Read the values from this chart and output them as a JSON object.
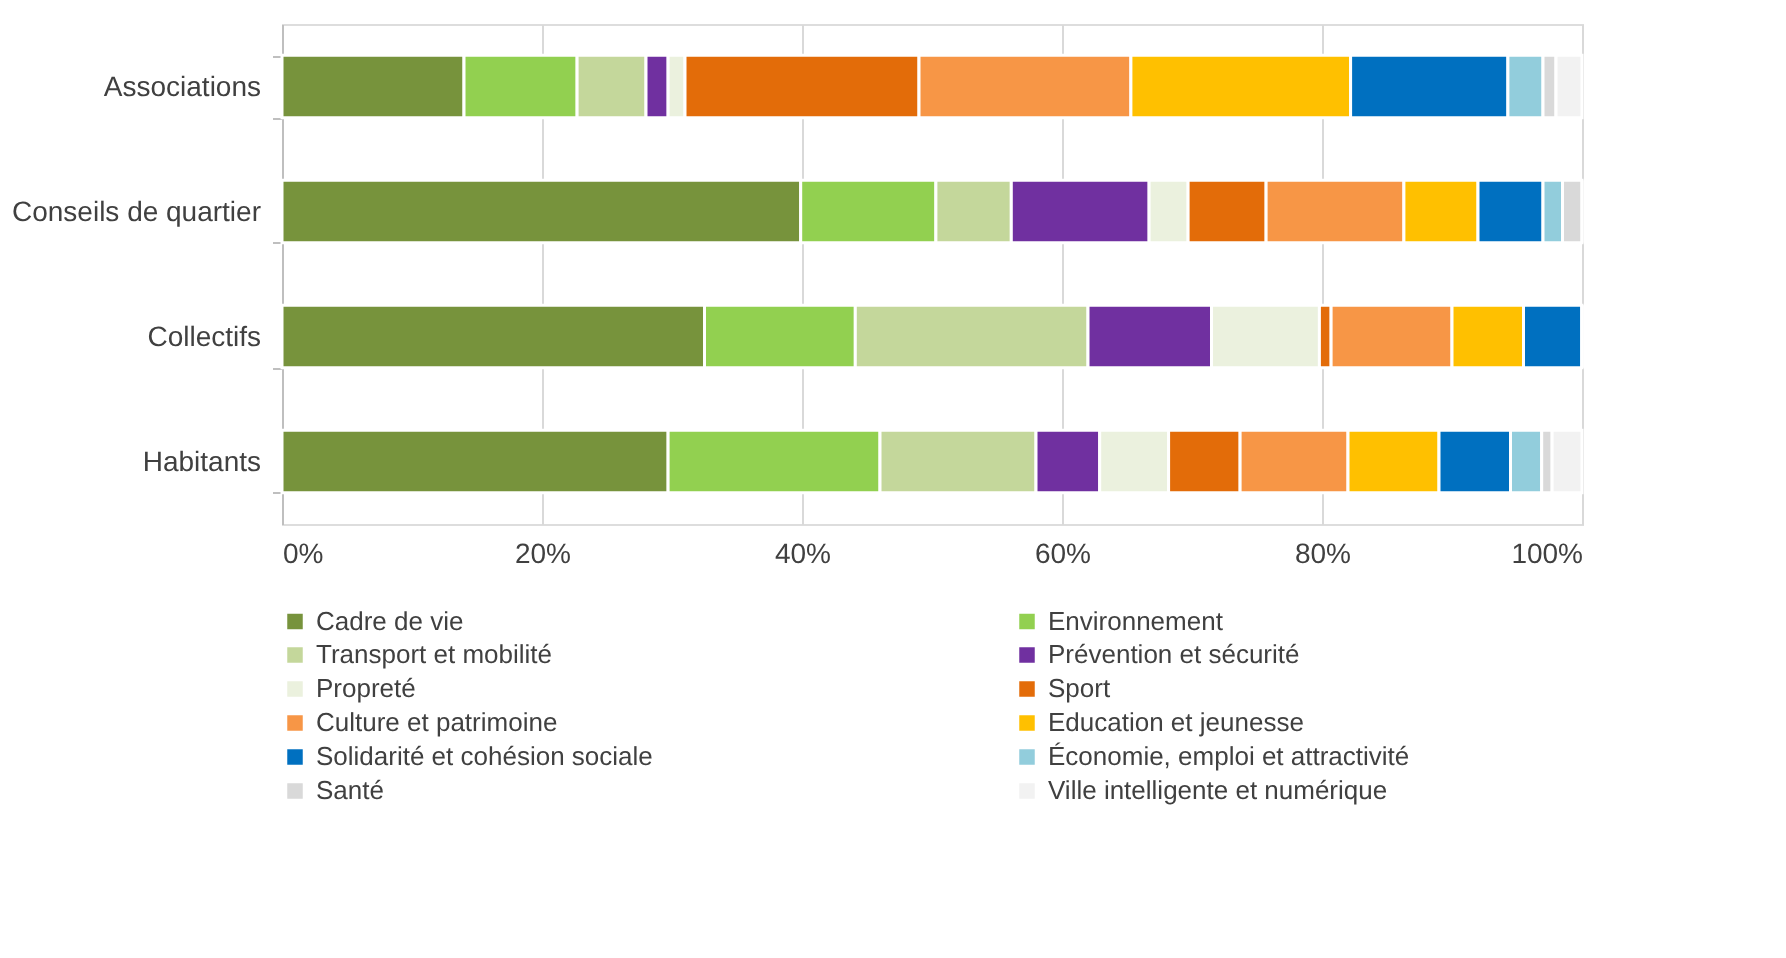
{
  "chart_data": {
    "type": "bar",
    "orientation": "horizontal",
    "stacked": true,
    "categories": [
      "Associations",
      "Conseils de quartier",
      "Collectifs",
      "Habitants"
    ],
    "xlim": [
      0,
      100
    ],
    "xticks": [
      {
        "value": 0,
        "label": "0%"
      },
      {
        "value": 20,
        "label": "20%"
      },
      {
        "value": 40,
        "label": "40%"
      },
      {
        "value": 60,
        "label": "60%"
      },
      {
        "value": 80,
        "label": "80%"
      },
      {
        "value": 100,
        "label": "100%"
      }
    ],
    "grid": "x",
    "legend": "bottom",
    "series": [
      {
        "name": "Cadre de vie",
        "color": "#77933c",
        "values": [
          14.0,
          39.9,
          32.5,
          29.7
        ]
      },
      {
        "name": "Environnement",
        "color": "#92d050",
        "values": [
          8.7,
          10.4,
          11.6,
          16.3
        ]
      },
      {
        "name": "Transport et mobilité",
        "color": "#c4d79b",
        "values": [
          5.3,
          5.8,
          17.9,
          12.0
        ]
      },
      {
        "name": "Prévention et sécurité",
        "color": "#7030a0",
        "values": [
          1.7,
          10.6,
          9.5,
          4.9
        ]
      },
      {
        "name": "Propreté",
        "color": "#ebf1de",
        "values": [
          1.3,
          3.0,
          8.3,
          5.3
        ]
      },
      {
        "name": "Sport",
        "color": "#e36c09",
        "values": [
          18.0,
          6.0,
          0.9,
          5.5
        ]
      },
      {
        "name": "Culture et patrimoine",
        "color": "#f79646",
        "values": [
          16.3,
          10.6,
          9.3,
          8.3
        ]
      },
      {
        "name": "Education et jeunesse",
        "color": "#ffc000",
        "values": [
          16.9,
          5.7,
          5.5,
          7.0
        ]
      },
      {
        "name": "Solidarité et cohésion sociale",
        "color": "#0070c0",
        "values": [
          12.1,
          5.0,
          4.5,
          5.5
        ]
      },
      {
        "name": "Économie, emploi et attractivité",
        "color": "#92cddc",
        "values": [
          2.7,
          1.5,
          0,
          2.4
        ]
      },
      {
        "name": "Santé",
        "color": "#d9d9d9",
        "values": [
          1.0,
          1.5,
          0,
          0.8
        ]
      },
      {
        "name": "Ville intelligente et numérique",
        "color": "#f2f2f2",
        "values": [
          2.0,
          0,
          0,
          2.3
        ]
      }
    ]
  }
}
